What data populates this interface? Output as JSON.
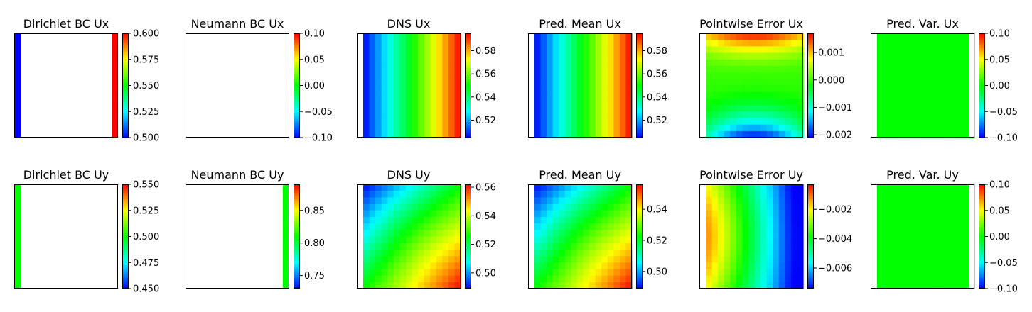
{
  "chart_data": [
    {
      "type": "heatmap",
      "title": "Dirichlet BC Ux",
      "field": "dirichlet_ux",
      "clim": [
        0.5,
        0.6
      ],
      "colorbar_ticks": [
        {
          "v": 0.5,
          "label": "0.500"
        },
        {
          "v": 0.525,
          "label": "0.525"
        },
        {
          "v": 0.55,
          "label": "0.550"
        },
        {
          "v": 0.575,
          "label": "0.575"
        },
        {
          "v": 0.6,
          "label": "0.600"
        }
      ],
      "left_column_value": 0.5,
      "right_column_value": 0.6
    },
    {
      "type": "heatmap",
      "title": "Neumann BC Ux",
      "field": "blank",
      "clim": [
        -0.1,
        0.1
      ],
      "colorbar_ticks": [
        {
          "v": -0.1,
          "label": "−0.10"
        },
        {
          "v": -0.05,
          "label": "−0.05"
        },
        {
          "v": 0.0,
          "label": "0.00"
        },
        {
          "v": 0.05,
          "label": "0.05"
        },
        {
          "v": 0.1,
          "label": "0.10"
        }
      ]
    },
    {
      "type": "heatmap",
      "title": "DNS Ux",
      "field": "ux",
      "clim": [
        0.505,
        0.595
      ],
      "value_range": [
        0.505,
        0.595
      ],
      "colorbar_ticks": [
        {
          "v": 0.52,
          "label": "0.52"
        },
        {
          "v": 0.54,
          "label": "0.54"
        },
        {
          "v": 0.56,
          "label": "0.56"
        },
        {
          "v": 0.58,
          "label": "0.58"
        }
      ]
    },
    {
      "type": "heatmap",
      "title": "Pred. Mean Ux",
      "field": "ux",
      "clim": [
        0.505,
        0.595
      ],
      "value_range": [
        0.505,
        0.595
      ],
      "colorbar_ticks": [
        {
          "v": 0.52,
          "label": "0.52"
        },
        {
          "v": 0.54,
          "label": "0.54"
        },
        {
          "v": 0.56,
          "label": "0.56"
        },
        {
          "v": 0.58,
          "label": "0.58"
        }
      ]
    },
    {
      "type": "heatmap",
      "title": "Pointwise Error Ux",
      "field": "err_ux",
      "clim": [
        -0.0021,
        0.0017
      ],
      "value_range": [
        -0.0021,
        0.0017
      ],
      "colorbar_ticks": [
        {
          "v": -0.002,
          "label": "−0.002"
        },
        {
          "v": -0.001,
          "label": "−0.001"
        },
        {
          "v": 0.0,
          "label": "0.000"
        },
        {
          "v": 0.001,
          "label": "0.001"
        }
      ]
    },
    {
      "type": "heatmap",
      "title": "Pred. Var. Ux",
      "field": "const",
      "const_value": 0.0,
      "clim": [
        -0.1,
        0.1
      ],
      "colorbar_ticks": [
        {
          "v": -0.1,
          "label": "−0.10"
        },
        {
          "v": -0.05,
          "label": "−0.05"
        },
        {
          "v": 0.0,
          "label": "0.00"
        },
        {
          "v": 0.05,
          "label": "0.05"
        },
        {
          "v": 0.1,
          "label": "0.10"
        }
      ]
    },
    {
      "type": "heatmap",
      "title": "Dirichlet BC Uy",
      "field": "dirichlet_uy",
      "clim": [
        0.45,
        0.55
      ],
      "colorbar_ticks": [
        {
          "v": 0.45,
          "label": "0.450"
        },
        {
          "v": 0.475,
          "label": "0.475"
        },
        {
          "v": 0.5,
          "label": "0.500"
        },
        {
          "v": 0.525,
          "label": "0.525"
        },
        {
          "v": 0.55,
          "label": "0.550"
        }
      ],
      "left_column_value": 0.5
    },
    {
      "type": "heatmap",
      "title": "Neumann BC Uy",
      "field": "neumann_uy",
      "clim": [
        0.73,
        0.89
      ],
      "colorbar_ticks": [
        {
          "v": 0.75,
          "label": "0.75"
        },
        {
          "v": 0.8,
          "label": "0.80"
        },
        {
          "v": 0.85,
          "label": "0.85"
        }
      ],
      "right_column_value": 0.81
    },
    {
      "type": "heatmap",
      "title": "DNS Uy",
      "field": "uy",
      "clim": [
        0.489,
        0.562
      ],
      "value_range": [
        0.489,
        0.562
      ],
      "colorbar_ticks": [
        {
          "v": 0.5,
          "label": "0.50"
        },
        {
          "v": 0.52,
          "label": "0.52"
        },
        {
          "v": 0.54,
          "label": "0.54"
        },
        {
          "v": 0.56,
          "label": "0.56"
        }
      ]
    },
    {
      "type": "heatmap",
      "title": "Pred. Mean Uy",
      "field": "uy",
      "clim": [
        0.489,
        0.556
      ],
      "value_range": [
        0.489,
        0.556
      ],
      "colorbar_ticks": [
        {
          "v": 0.5,
          "label": "0.50"
        },
        {
          "v": 0.52,
          "label": "0.52"
        },
        {
          "v": 0.54,
          "label": "0.54"
        }
      ]
    },
    {
      "type": "heatmap",
      "title": "Pointwise Error Uy",
      "field": "err_uy",
      "clim": [
        -0.0074,
        -0.0003
      ],
      "value_range": [
        -0.0074,
        -0.0003
      ],
      "colorbar_ticks": [
        {
          "v": -0.006,
          "label": "−0.006"
        },
        {
          "v": -0.004,
          "label": "−0.004"
        },
        {
          "v": -0.002,
          "label": "−0.002"
        }
      ]
    },
    {
      "type": "heatmap",
      "title": "Pred. Var. Uy",
      "field": "const",
      "const_value": 0.0,
      "clim": [
        -0.1,
        0.1
      ],
      "colorbar_ticks": [
        {
          "v": -0.1,
          "label": "−0.10"
        },
        {
          "v": -0.05,
          "label": "−0.05"
        },
        {
          "v": 0.0,
          "label": "0.00"
        },
        {
          "v": 0.05,
          "label": "0.05"
        },
        {
          "v": 0.1,
          "label": "0.10"
        }
      ]
    }
  ]
}
